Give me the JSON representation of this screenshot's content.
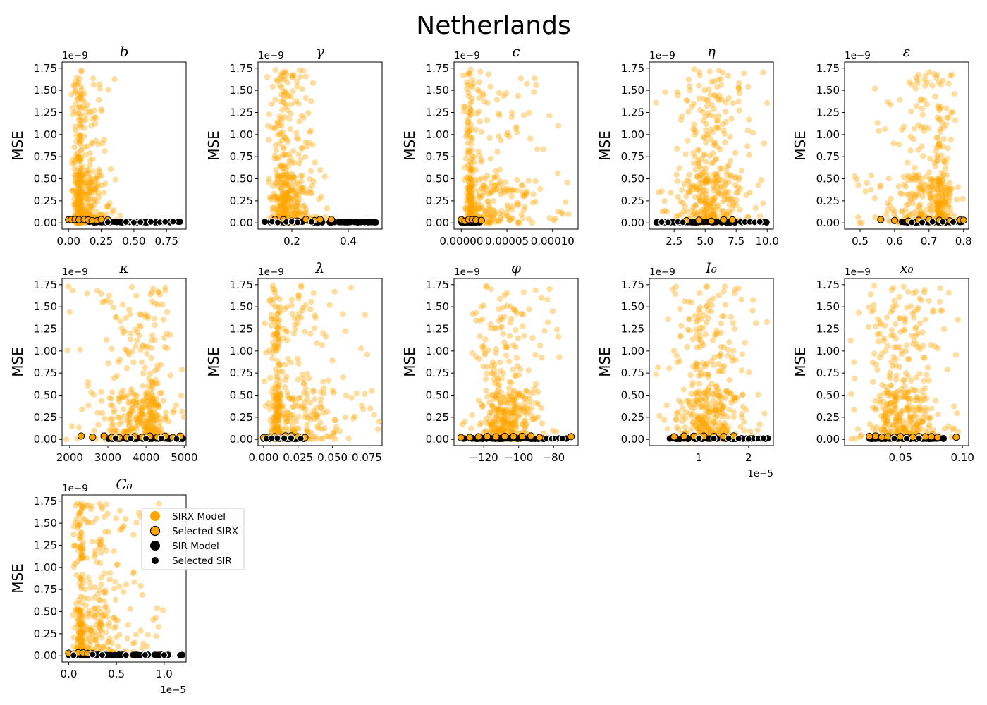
{
  "figure": {
    "suptitle": "Netherlands"
  },
  "legend": {
    "entries": [
      {
        "label": "SIRX Model",
        "marker": "sirx"
      },
      {
        "label": "Selected SIRX",
        "marker": "sel-sirx"
      },
      {
        "label": "SIR Model",
        "marker": "sir"
      },
      {
        "label": "Selected SIR",
        "marker": "sel-sir"
      }
    ]
  },
  "colors": {
    "sirx": "#FFA500",
    "sir": "#000000",
    "edge": "#000000",
    "selected_sir_edge": "#FFFFFF"
  },
  "chart_data": [
    {
      "type": "scatter",
      "param": "b",
      "title": "b",
      "ylabel": "MSE",
      "y_offset": "1e−9",
      "x_offset": "",
      "xlim": [
        -0.05,
        0.9
      ],
      "ylim": [
        -0.07,
        1.82
      ],
      "xticks": [
        0.0,
        0.25,
        0.5,
        0.75
      ],
      "xticklabels": [
        "0.00",
        "0.25",
        "0.50",
        "0.75"
      ],
      "yticks": [
        0,
        0.25,
        0.5,
        0.75,
        1.0,
        1.25,
        1.5,
        1.75
      ],
      "yticklabels": [
        "0.00",
        "0.25",
        "0.50",
        "0.75",
        "1.00",
        "1.25",
        "1.50",
        "1.75"
      ],
      "sirx_cloud": {
        "x_range": [
          0.0,
          0.4
        ],
        "x_center": 0.1,
        "y_max": 1.74
      },
      "sirx_selected_x": [
        0.0,
        0.02,
        0.05,
        0.08,
        0.12,
        0.15,
        0.18,
        0.22,
        0.25,
        0.3
      ],
      "sir_x_range": [
        0.15,
        0.88
      ],
      "sir_selected_x": [
        0.3,
        0.44,
        0.5,
        0.55,
        0.63,
        0.7,
        0.74,
        0.8
      ]
    },
    {
      "type": "scatter",
      "param": "gamma",
      "title": "γ",
      "ylabel": "MSE",
      "y_offset": "1e−9",
      "x_offset": "",
      "xlim": [
        0.08,
        0.52
      ],
      "ylim": [
        -0.07,
        1.82
      ],
      "xticks": [
        0.2,
        0.4
      ],
      "xticklabels": [
        "0.2",
        "0.4"
      ],
      "yticks": [
        0,
        0.25,
        0.5,
        0.75,
        1.0,
        1.25,
        1.5,
        1.75
      ],
      "yticklabels": [
        "0.00",
        "0.25",
        "0.50",
        "0.75",
        "1.00",
        "1.25",
        "1.50",
        "1.75"
      ],
      "sirx_cloud": {
        "x_range": [
          0.1,
          0.33
        ],
        "x_center": 0.18,
        "y_max": 1.74
      },
      "sirx_selected_x": [
        0.14,
        0.17,
        0.2,
        0.22,
        0.25,
        0.28,
        0.3,
        0.34
      ],
      "sir_x_range": [
        0.1,
        0.5
      ],
      "sir_selected_x": [
        0.13,
        0.15,
        0.18,
        0.2,
        0.22,
        0.27
      ]
    },
    {
      "type": "scatter",
      "param": "c",
      "title": "c",
      "ylabel": "MSE",
      "y_offset": "1e−9",
      "x_offset": "",
      "xlim": [
        -8e-06,
        0.000128
      ],
      "ylim": [
        -0.07,
        1.82
      ],
      "xticks": [
        0.0,
        5e-05,
        0.0001
      ],
      "xticklabels": [
        "0.00000",
        "0.00005",
        "0.00010"
      ],
      "yticks": [
        0,
        0.25,
        0.5,
        0.75,
        1.0,
        1.25,
        1.5,
        1.75
      ],
      "yticklabels": [
        "0.00",
        "0.25",
        "0.50",
        "0.75",
        "1.00",
        "1.25",
        "1.50",
        "1.75"
      ],
      "sirx_cloud": {
        "x_range": [
          0.0,
          0.000125
        ],
        "x_center": 1.2e-05,
        "y_max": 1.74
      },
      "sirx_selected_x": [
        0.0,
        4e-06,
        8e-06,
        1.2e-05,
        1.6e-05,
        2.2e-05
      ],
      "sir_x_range": [
        0.0,
        2e-05
      ],
      "sir_selected_x": []
    },
    {
      "type": "scatter",
      "param": "eta",
      "title": "η",
      "ylabel": "MSE",
      "y_offset": "1e−9",
      "x_offset": "",
      "xlim": [
        0.5,
        10.5
      ],
      "ylim": [
        -0.07,
        1.82
      ],
      "xticks": [
        2.5,
        5.0,
        7.5,
        10.0
      ],
      "xticklabels": [
        "2.5",
        "5.0",
        "7.5",
        "10.0"
      ],
      "yticks": [
        0,
        0.25,
        0.5,
        0.75,
        1.0,
        1.25,
        1.5,
        1.75
      ],
      "yticklabels": [
        "0.00",
        "0.25",
        "0.50",
        "0.75",
        "1.00",
        "1.25",
        "1.50",
        "1.75"
      ],
      "sirx_cloud": {
        "x_range": [
          1.0,
          10.0
        ],
        "x_center": 5.3,
        "y_max": 1.74
      },
      "sirx_selected_x": [
        3.5,
        4.5,
        5.5,
        6.5,
        7.2
      ],
      "sir_x_range": [
        1.0,
        10.0
      ],
      "sir_selected_x": [
        1.5,
        2.0,
        2.8,
        3.2,
        8.2,
        8.6,
        9.0,
        9.4
      ]
    },
    {
      "type": "scatter",
      "param": "epsilon",
      "title": "ε",
      "ylabel": "MSE",
      "y_offset": "1e−9",
      "x_offset": "",
      "xlim": [
        0.455,
        0.815
      ],
      "ylim": [
        -0.07,
        1.82
      ],
      "xticks": [
        0.5,
        0.6,
        0.7,
        0.8
      ],
      "xticklabels": [
        "0.5",
        "0.6",
        "0.7",
        "0.8"
      ],
      "yticks": [
        0,
        0.25,
        0.5,
        0.75,
        1.0,
        1.25,
        1.5,
        1.75
      ],
      "yticklabels": [
        "0.00",
        "0.25",
        "0.50",
        "0.75",
        "1.00",
        "1.25",
        "1.50",
        "1.75"
      ],
      "sirx_cloud": {
        "x_range": [
          0.47,
          0.8
        ],
        "x_center": 0.72,
        "y_max": 1.74
      },
      "sirx_selected_x": [
        0.56,
        0.6,
        0.64,
        0.67,
        0.7,
        0.73,
        0.76,
        0.79,
        0.8
      ],
      "sir_x_range": [
        0.62,
        0.8
      ],
      "sir_selected_x": [
        0.65,
        0.68,
        0.71,
        0.74,
        0.77
      ]
    },
    {
      "type": "scatter",
      "param": "kappa",
      "title": "κ",
      "ylabel": "MSE",
      "y_offset": "1e−9",
      "x_offset": "",
      "xlim": [
        1800,
        5050
      ],
      "ylim": [
        -0.07,
        1.82
      ],
      "xticks": [
        2000,
        3000,
        4000,
        5000
      ],
      "xticklabels": [
        "2000",
        "3000",
        "4000",
        "5000"
      ],
      "yticks": [
        0,
        0.25,
        0.5,
        0.75,
        1.0,
        1.25,
        1.5,
        1.75
      ],
      "yticklabels": [
        "0.00",
        "0.25",
        "0.50",
        "0.75",
        "1.00",
        "1.25",
        "1.50",
        "1.75"
      ],
      "sirx_cloud": {
        "x_range": [
          1850,
          5000
        ],
        "x_center": 4000,
        "y_max": 1.74
      },
      "sirx_selected_x": [
        2300,
        2600,
        2900,
        3100,
        3300,
        3500,
        3700,
        3900,
        4100,
        4300,
        4500,
        4700,
        4900
      ],
      "sir_x_range": [
        3000,
        5000
      ],
      "sir_selected_x": [
        3200,
        3600,
        4000,
        4400,
        4800
      ]
    },
    {
      "type": "scatter",
      "param": "lambda",
      "title": "λ",
      "ylabel": "MSE",
      "y_offset": "1e−9",
      "x_offset": "",
      "xlim": [
        -0.004,
        0.086
      ],
      "ylim": [
        -0.07,
        1.82
      ],
      "xticks": [
        0.0,
        0.025,
        0.05,
        0.075
      ],
      "xticklabels": [
        "0.000",
        "0.025",
        "0.050",
        "0.075"
      ],
      "yticks": [
        0,
        0.25,
        0.5,
        0.75,
        1.0,
        1.25,
        1.5,
        1.75
      ],
      "yticklabels": [
        "0.00",
        "0.25",
        "0.50",
        "0.75",
        "1.00",
        "1.25",
        "1.50",
        "1.75"
      ],
      "sirx_cloud": {
        "x_range": [
          0.0,
          0.085
        ],
        "x_center": 0.012,
        "y_max": 1.74
      },
      "sirx_selected_x": [
        0.0,
        0.004,
        0.008,
        0.012,
        0.016,
        0.02,
        0.025,
        0.03
      ],
      "sir_x_range": [
        0.0,
        0.03
      ],
      "sir_selected_x": [
        0.002,
        0.006,
        0.01,
        0.015,
        0.02,
        0.027
      ]
    },
    {
      "type": "scatter",
      "param": "phi",
      "title": "φ",
      "ylabel": "MSE",
      "y_offset": "1e−9",
      "x_offset": "",
      "xlim": [
        -137,
        -66
      ],
      "ylim": [
        -0.07,
        1.82
      ],
      "xticks": [
        -120,
        -100,
        -80
      ],
      "xticklabels": [
        "−120",
        "−100",
        "−80"
      ],
      "yticks": [
        0,
        0.25,
        0.5,
        0.75,
        1.0,
        1.25,
        1.5,
        1.75
      ],
      "yticklabels": [
        "0.00",
        "0.25",
        "0.50",
        "0.75",
        "1.00",
        "1.25",
        "1.50",
        "1.75"
      ],
      "sirx_cloud": {
        "x_range": [
          -134,
          -75
        ],
        "x_center": -108,
        "y_max": 1.74
      },
      "sirx_selected_x": [
        -133,
        -128,
        -123,
        -118,
        -113,
        -108,
        -103,
        -98,
        -93,
        -88,
        -70
      ],
      "sir_x_range": [
        -134,
        -72
      ],
      "sir_selected_x": [
        -84,
        -81,
        -79,
        -77,
        -75
      ]
    },
    {
      "type": "scatter",
      "param": "I0",
      "title": "I₀",
      "ylabel": "MSE",
      "y_offset": "1e−9",
      "x_offset": "1e−5",
      "xlim": [
        0.0,
        2.5
      ],
      "ylim": [
        -0.07,
        1.82
      ],
      "xticks": [
        1,
        2
      ],
      "xticklabels": [
        "1",
        "2"
      ],
      "yticks": [
        0,
        0.25,
        0.5,
        0.75,
        1.0,
        1.25,
        1.5,
        1.75
      ],
      "yticklabels": [
        "0.00",
        "0.25",
        "0.50",
        "0.75",
        "1.00",
        "1.25",
        "1.50",
        "1.75"
      ],
      "sirx_cloud": {
        "x_range": [
          0.1,
          2.4
        ],
        "x_center": 1.15,
        "y_max": 1.74
      },
      "sirx_selected_x": [
        0.5,
        0.7,
        0.9,
        1.1,
        1.3,
        1.5,
        1.7
      ],
      "sir_x_range": [
        0.4,
        2.4
      ],
      "sir_selected_x": [
        1.0,
        1.3,
        1.6,
        1.8,
        2.0,
        2.2,
        2.3
      ]
    },
    {
      "type": "scatter",
      "param": "x0",
      "title": "x₀",
      "ylabel": "MSE",
      "y_offset": "1e−9",
      "x_offset": "",
      "xlim": [
        0.005,
        0.105
      ],
      "ylim": [
        -0.07,
        1.82
      ],
      "xticks": [
        0.05,
        0.1
      ],
      "xticklabels": [
        "0.05",
        "0.10"
      ],
      "yticks": [
        0,
        0.25,
        0.5,
        0.75,
        1.0,
        1.25,
        1.5,
        1.75
      ],
      "yticklabels": [
        "0.00",
        "0.25",
        "0.50",
        "0.75",
        "1.00",
        "1.25",
        "1.50",
        "1.75"
      ],
      "sirx_cloud": {
        "x_range": [
          0.008,
          0.1
        ],
        "x_center": 0.05,
        "y_max": 1.74
      },
      "sirx_selected_x": [
        0.025,
        0.03,
        0.035,
        0.04,
        0.045,
        0.05,
        0.055,
        0.06,
        0.065,
        0.07,
        0.075,
        0.08,
        0.095
      ],
      "sir_x_range": [
        0.025,
        0.085
      ],
      "sir_selected_x": [
        0.045,
        0.055,
        0.065
      ]
    },
    {
      "type": "scatter",
      "param": "C0",
      "title": "C₀",
      "ylabel": "MSE",
      "y_offset": "1e−9",
      "x_offset": "1e−5",
      "xlim": [
        -0.07,
        1.23
      ],
      "ylim": [
        -0.07,
        1.82
      ],
      "xticks": [
        0.0,
        0.5,
        1.0
      ],
      "xticklabels": [
        "0.0",
        "0.5",
        "1.0"
      ],
      "yticks": [
        0,
        0.25,
        0.5,
        0.75,
        1.0,
        1.25,
        1.5,
        1.75
      ],
      "yticklabels": [
        "0.00",
        "0.25",
        "0.50",
        "0.75",
        "1.00",
        "1.25",
        "1.50",
        "1.75"
      ],
      "sirx_cloud": {
        "x_range": [
          0.0,
          1.05
        ],
        "x_center": 0.15,
        "y_max": 1.74
      },
      "sirx_selected_x": [
        0.0,
        0.05,
        0.1,
        0.15,
        0.2,
        0.25
      ],
      "sir_x_range": [
        0.0,
        1.2
      ],
      "sir_selected_x": [
        0.05,
        0.25,
        0.35,
        0.6,
        0.8,
        1.0
      ]
    }
  ]
}
